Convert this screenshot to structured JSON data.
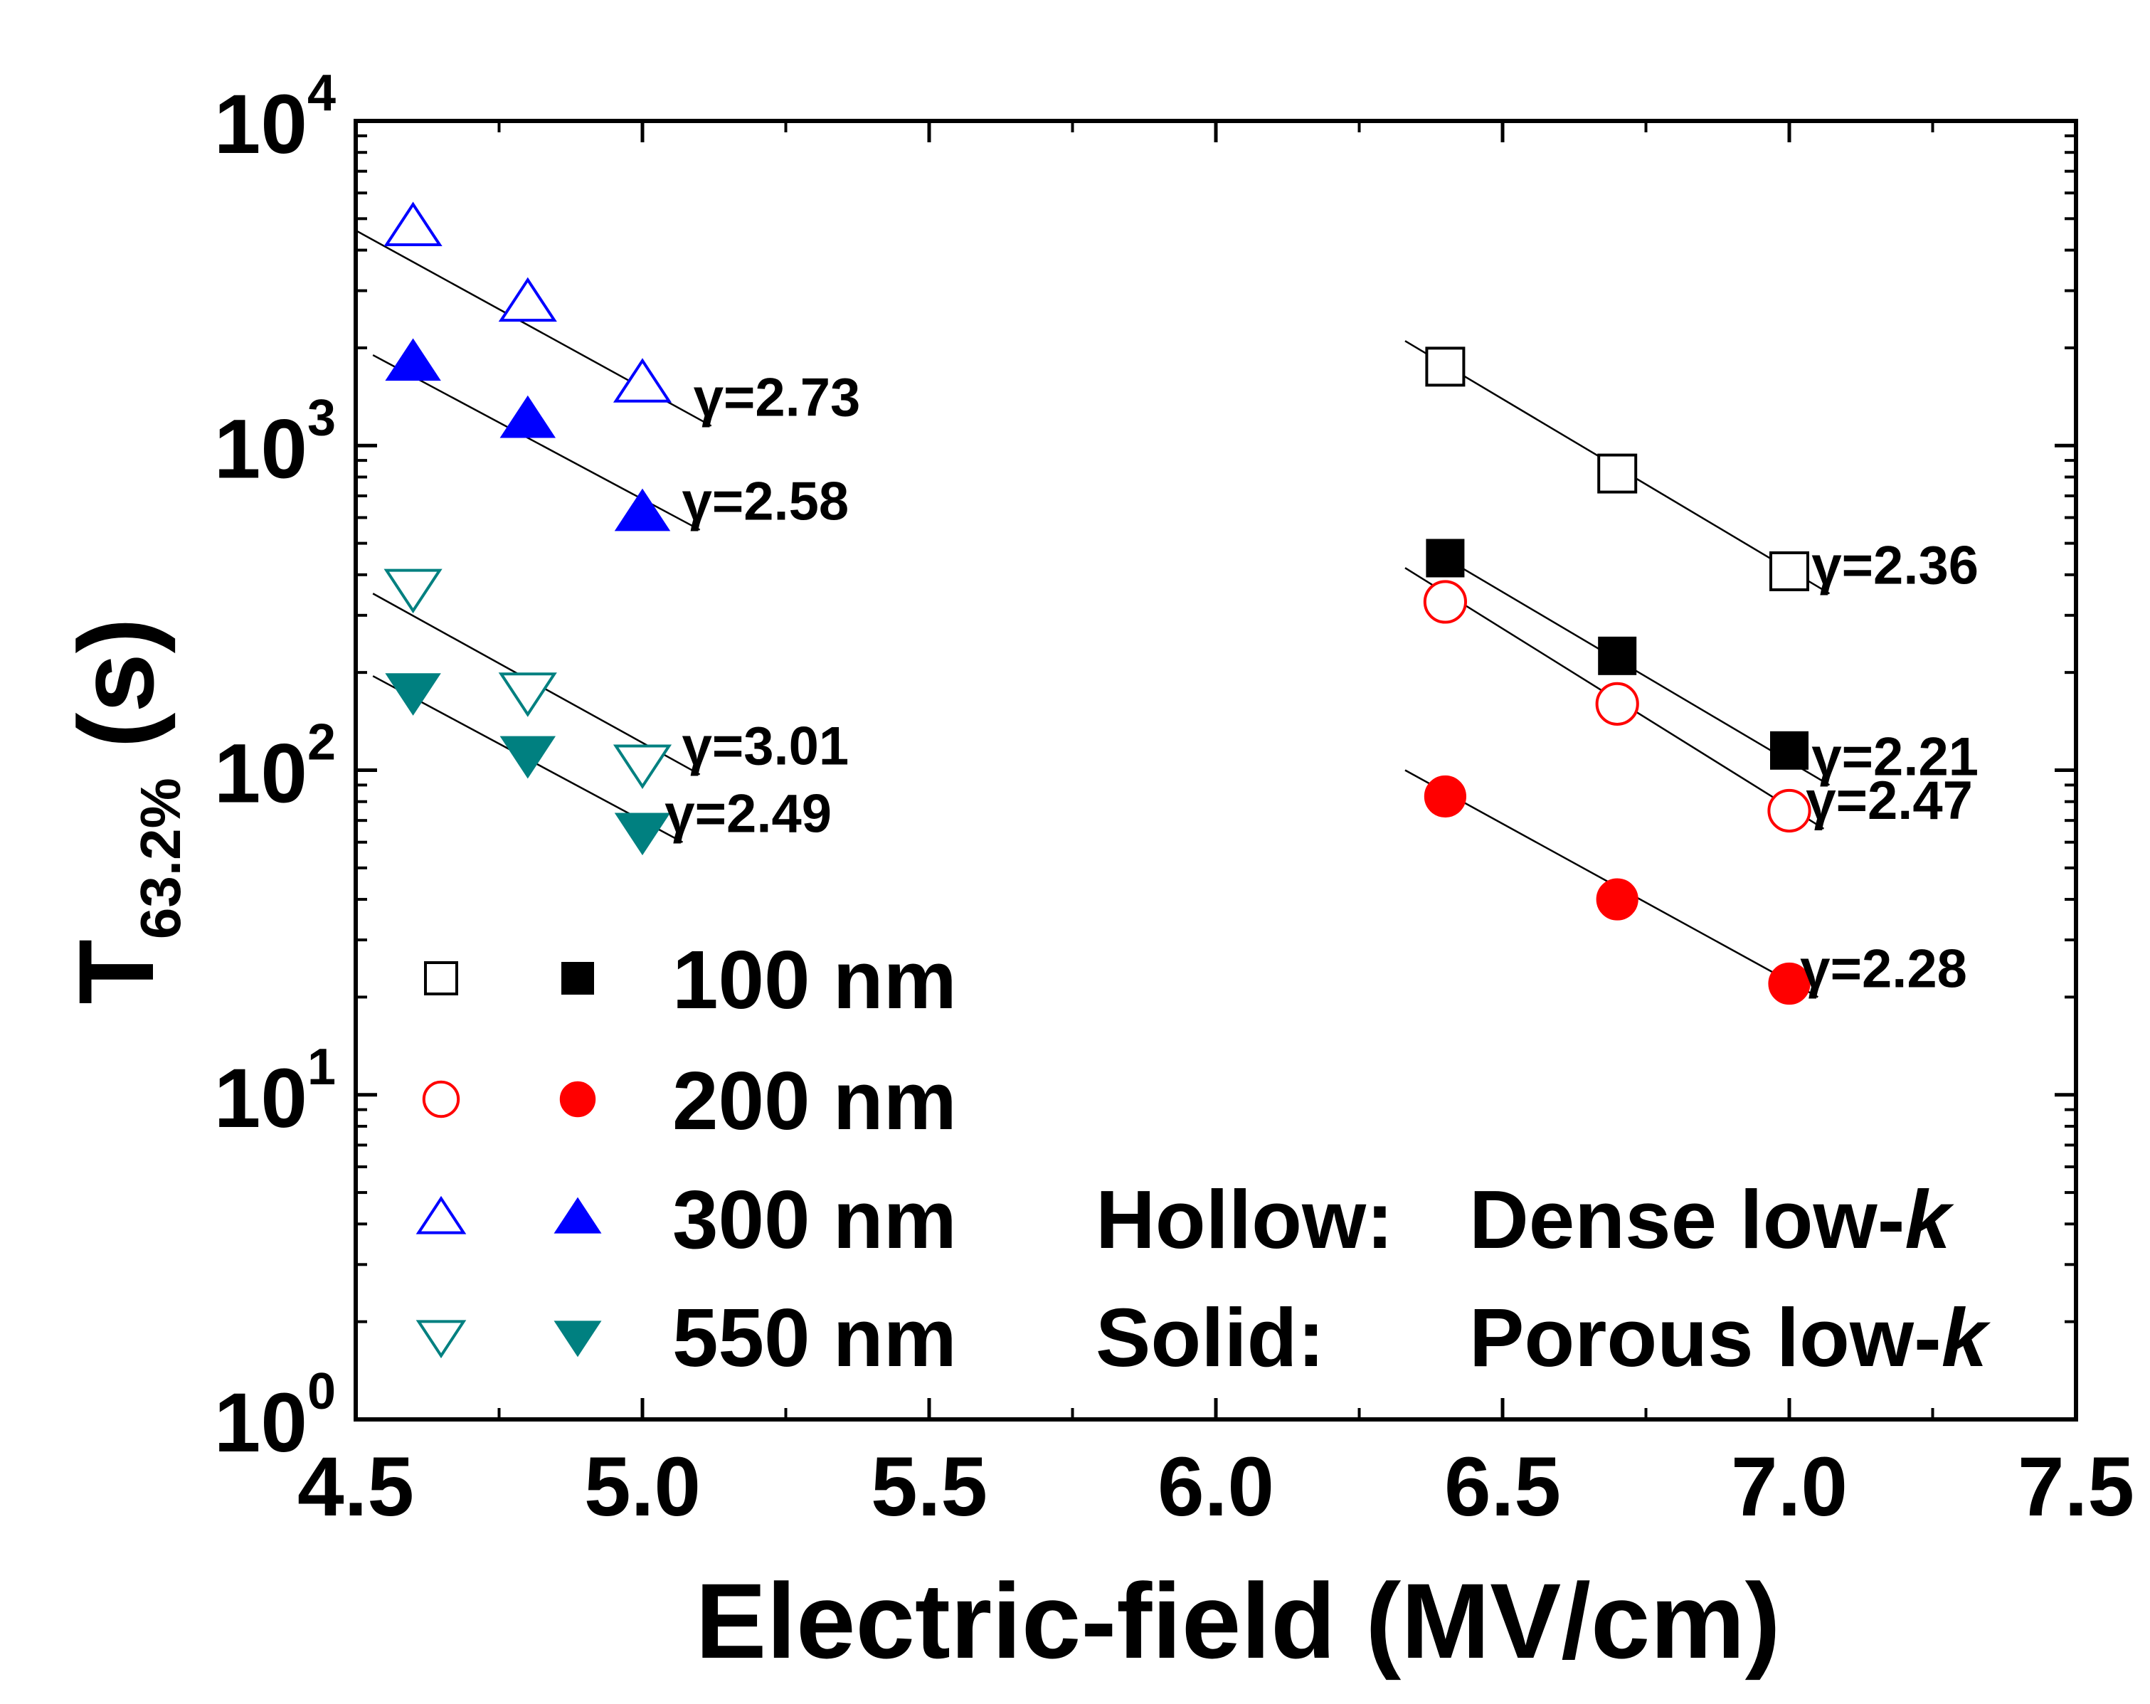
{
  "chart_data": {
    "type": "scatter",
    "xlabel": "Electric-field (MV/cm)",
    "ylabel_main": "T",
    "ylabel_sub": "63.2%",
    "ylabel_unit": " (s)",
    "xlim": [
      4.5,
      7.5
    ],
    "ylim": [
      1,
      10000
    ],
    "yscale": "log",
    "xticks": [
      "4.5",
      "5.0",
      "5.5",
      "6.0",
      "6.5",
      "7.0",
      "7.5"
    ],
    "xtick_values": [
      4.5,
      5.0,
      5.5,
      6.0,
      6.5,
      7.0,
      7.5
    ],
    "yticks": [
      {
        "base": "10",
        "exp": "0",
        "value": 1
      },
      {
        "base": "10",
        "exp": "1",
        "value": 10
      },
      {
        "base": "10",
        "exp": "2",
        "value": 100
      },
      {
        "base": "10",
        "exp": "3",
        "value": 1000
      },
      {
        "base": "10",
        "exp": "4",
        "value": 10000
      }
    ],
    "series": [
      {
        "name": "100 nm Dense low-k",
        "marker": "square",
        "filled": false,
        "color": "#000000",
        "x": [
          6.4,
          6.7,
          7.0
        ],
        "y": [
          1750,
          820,
          410
        ],
        "fit": {
          "x": [
            6.33,
            7.07
          ],
          "y": [
            2100,
            350
          ]
        },
        "gamma": "γ=2.36"
      },
      {
        "name": "100 nm Porous low-k",
        "marker": "square",
        "filled": true,
        "color": "#000000",
        "x": [
          6.4,
          6.7,
          7.0
        ],
        "y": [
          450,
          225,
          115
        ],
        "fit": {
          "x": [
            6.4,
            7.07
          ],
          "y": [
            450,
            90
          ]
        },
        "gamma": "γ=2.21"
      },
      {
        "name": "200 nm Dense low-k",
        "marker": "circle",
        "filled": false,
        "color": "#ff0000",
        "x": [
          6.4,
          6.7,
          7.0
        ],
        "y": [
          330,
          160,
          75
        ],
        "fit": {
          "x": [
            6.33,
            7.06
          ],
          "y": [
            420,
            66
          ]
        },
        "gamma": "γ=2.47"
      },
      {
        "name": "200 nm Porous low-k",
        "marker": "circle",
        "filled": true,
        "color": "#ff0000",
        "x": [
          6.4,
          6.7,
          7.0
        ],
        "y": [
          83,
          40,
          22
        ],
        "fit": {
          "x": [
            6.33,
            7.05
          ],
          "y": [
            100,
            20
          ]
        },
        "gamma": "γ=2.28"
      },
      {
        "name": "300 nm Dense low-k",
        "marker": "triangle-up",
        "filled": false,
        "color": "#0000ff",
        "x": [
          4.6,
          4.8,
          5.0
        ],
        "y": [
          4700,
          2750,
          1550
        ],
        "fit": {
          "x": [
            4.5,
            5.12
          ],
          "y": [
            4600,
            1150
          ]
        },
        "gamma": "γ=2.73"
      },
      {
        "name": "300 nm Porous low-k",
        "marker": "triangle-up",
        "filled": true,
        "color": "#0000ff",
        "x": [
          4.6,
          4.8,
          5.0
        ],
        "y": [
          1800,
          1200,
          620
        ],
        "fit": {
          "x": [
            4.53,
            5.1
          ],
          "y": [
            1900,
            550
          ]
        },
        "gamma": "γ=2.58"
      },
      {
        "name": "550 nm Dense low-k",
        "marker": "triangle-down",
        "filled": false,
        "color": "#008080",
        "x": [
          4.6,
          4.8,
          5.0
        ],
        "y": [
          365,
          175,
          105
        ],
        "fit": {
          "x": [
            4.53,
            5.1
          ],
          "y": [
            350,
            97
          ]
        },
        "gamma": "γ=3.01"
      },
      {
        "name": "550 nm Porous low-k",
        "marker": "triangle-down",
        "filled": true,
        "color": "#008080",
        "x": [
          4.6,
          4.8,
          5.0
        ],
        "y": [
          175,
          112,
          65
        ],
        "fit": {
          "x": [
            4.53,
            5.07
          ],
          "y": [
            195,
            60
          ]
        },
        "gamma": "γ=2.49"
      }
    ],
    "legend": {
      "placement": "bottom-left",
      "rows": [
        {
          "label": "100 nm",
          "marker": "square",
          "color": "#000000"
        },
        {
          "label": "200 nm",
          "marker": "circle",
          "color": "#ff0000"
        },
        {
          "label": "300 nm",
          "marker": "triangle-up",
          "color": "#0000ff"
        },
        {
          "label": "550 nm",
          "marker": "triangle-down",
          "color": "#008080"
        }
      ],
      "notes": [
        {
          "label": "Hollow:",
          "desc": "Dense low-",
          "k": "k"
        },
        {
          "label": "Solid:",
          "desc": "Porous low-",
          "k": "k"
        }
      ]
    }
  }
}
